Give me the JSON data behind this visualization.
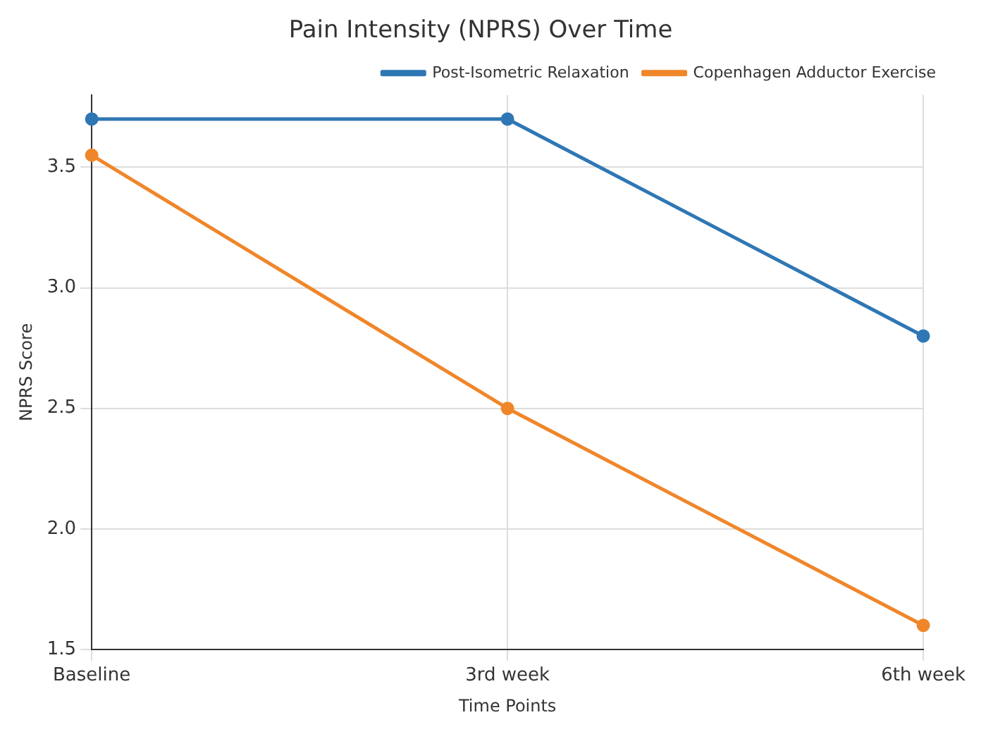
{
  "chart_data": {
    "type": "line",
    "title": "Pain Intensity (NPRS) Over Time",
    "xlabel": "Time Points",
    "ylabel": "NPRS Score",
    "categories": [
      "Baseline",
      "3rd week",
      "6th week"
    ],
    "series": [
      {
        "name": "Post-Isometric Relaxation",
        "color": "#2f77b4",
        "values": [
          3.7,
          3.7,
          2.8
        ]
      },
      {
        "name": "Copenhagen Adductor Exercise",
        "color": "#f0862a",
        "values": [
          3.55,
          2.5,
          1.6
        ]
      }
    ],
    "ylim": [
      1.5,
      3.8
    ],
    "yticks": [
      1.5,
      {
        "value": 2,
        "label": "2.0"
      },
      2.5,
      {
        "value": 3,
        "label": "3.0"
      },
      3.5
    ],
    "grid": true,
    "legend": "top right",
    "marker": "circle",
    "line_style": "solid"
  }
}
